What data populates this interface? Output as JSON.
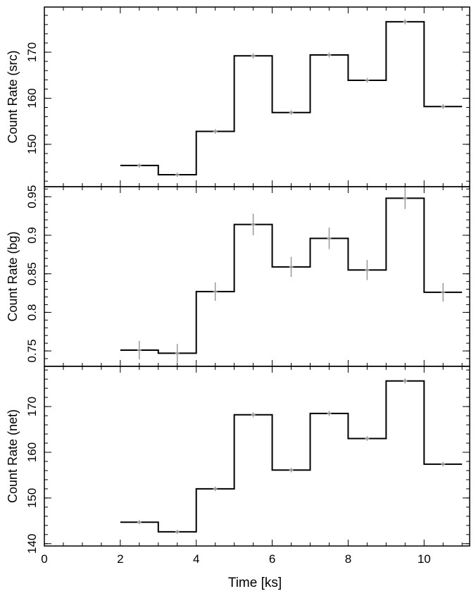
{
  "chart_data": {
    "type": "line",
    "step": true,
    "xlabel": "Time [ks]",
    "xlim": [
      0,
      11.2
    ],
    "x_ticks": [
      0,
      2,
      4,
      6,
      8,
      10
    ],
    "bin_edges": [
      2,
      3,
      4,
      5,
      6,
      7,
      8,
      9,
      10,
      11
    ],
    "bin_centers": [
      2.5,
      3.5,
      4.5,
      5.5,
      6.5,
      7.5,
      8.5,
      9.5,
      10.5
    ],
    "panels": [
      {
        "ylabel": "Count Rate (src)",
        "ylim": [
          140.8,
          179.8
        ],
        "y_ticks": [
          150,
          160,
          170
        ],
        "y_tick_labels": [
          "150",
          "160",
          "170"
        ],
        "values": [
          145.4,
          143.4,
          152.8,
          169.2,
          156.9,
          169.4,
          163.9,
          176.6,
          158.2
        ],
        "errors": [
          0.45,
          0.45,
          0.5,
          0.55,
          0.5,
          0.55,
          0.5,
          0.55,
          0.5
        ]
      },
      {
        "ylabel": "Count Rate (bg)",
        "ylim": [
          0.73,
          0.963
        ],
        "y_ticks": [
          0.75,
          0.8,
          0.85,
          0.9,
          0.95
        ],
        "y_tick_labels": [
          "0.75",
          "0.8",
          "0.85",
          "0.9",
          "0.95"
        ],
        "values": [
          0.751,
          0.747,
          0.827,
          0.914,
          0.859,
          0.896,
          0.855,
          0.948,
          0.826
        ],
        "errors": [
          0.012,
          0.012,
          0.012,
          0.014,
          0.013,
          0.014,
          0.013,
          0.014,
          0.012
        ]
      },
      {
        "ylabel": "Count Rate (net)",
        "ylim": [
          139.5,
          178.8
        ],
        "y_ticks": [
          140,
          150,
          160,
          170
        ],
        "y_tick_labels": [
          "140",
          "150",
          "160",
          "170"
        ],
        "values": [
          144.7,
          142.6,
          152.0,
          168.2,
          156.1,
          168.5,
          163.0,
          175.6,
          157.4
        ],
        "errors": [
          0.45,
          0.45,
          0.5,
          0.55,
          0.5,
          0.55,
          0.5,
          0.55,
          0.5
        ]
      }
    ],
    "colors": {
      "line": "#000000",
      "error_bar": "#999999",
      "frame": "#000000"
    }
  }
}
